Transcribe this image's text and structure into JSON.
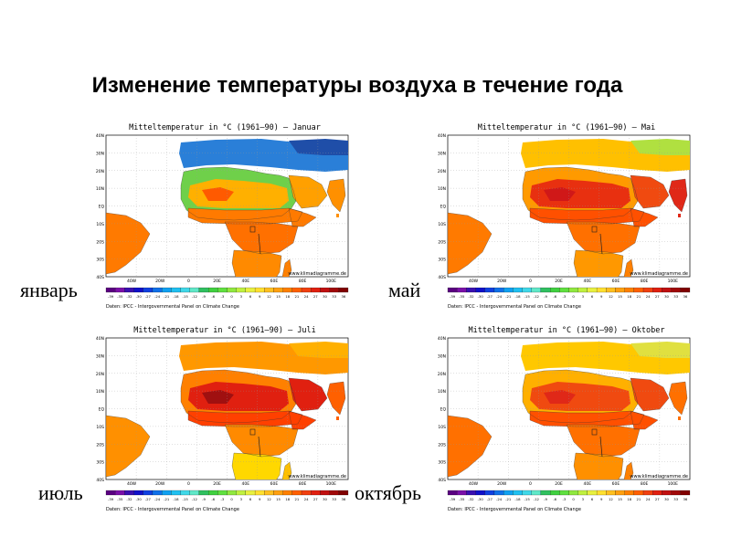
{
  "page": {
    "title": "Изменение температуры воздуха в течение года"
  },
  "panels": [
    {
      "id": "jan",
      "side_label": "январь",
      "map_title": "Mitteltemperatur in °C (1961–90) – Januar",
      "colors": {
        "north": "#6fd04a",
        "sahara": "#ffb000",
        "sahel": "#ff7a00",
        "central": "#ff7000",
        "south": "#ff8a00",
        "arabia": "#ffa000",
        "india": "#ff9000",
        "europe": "#2a7fd8",
        "far_north": "#1f4ea8",
        "hot": "#ff5a00",
        "madagascar": "#ff8000",
        "brazil": "#ff7a00"
      }
    },
    {
      "id": "may",
      "side_label": "май",
      "map_title": "Mitteltemperatur in °C (1961–90) – Mai",
      "colors": {
        "north": "#ff9a00",
        "sahara": "#e83010",
        "sahel": "#ff5000",
        "central": "#ff7000",
        "south": "#ff9800",
        "arabia": "#f04a10",
        "india": "#e02818",
        "europe": "#ffc000",
        "far_north": "#b0e040",
        "hot": "#d01818",
        "madagascar": "#ff8000",
        "brazil": "#ff7a00"
      }
    },
    {
      "id": "jul",
      "side_label": "июль",
      "map_title": "Mitteltemperatur in °C (1961–90) – Juli",
      "colors": {
        "north": "#ff8000",
        "sahara": "#e02010",
        "sahel": "#ff4000",
        "central": "#ff8a00",
        "south": "#ffd800",
        "arabia": "#e02010",
        "india": "#ff6000",
        "europe": "#ff9800",
        "far_north": "#ffb000",
        "hot": "#a01010",
        "madagascar": "#ffc000",
        "brazil": "#ff9000"
      }
    },
    {
      "id": "oct",
      "side_label": "октябрь",
      "map_title": "Mitteltemperatur in °C (1961–90) – Oktober",
      "colors": {
        "north": "#ffb000",
        "sahara": "#f04a10",
        "sahel": "#ff5000",
        "central": "#ff7000",
        "south": "#ff9000",
        "arabia": "#f04a10",
        "india": "#ff7000",
        "europe": "#ffc800",
        "far_north": "#e0e040",
        "hot": "#e02818",
        "madagascar": "#ff8000",
        "brazil": "#ff7000"
      }
    }
  ],
  "map": {
    "y_labels": [
      "40N",
      "30N",
      "20N",
      "10N",
      "EQ",
      "10S",
      "20S",
      "30S",
      "40S"
    ],
    "x_labels": [
      "40W",
      "20W",
      "0",
      "20E",
      "40E",
      "60E",
      "80E",
      "100E"
    ],
    "credit": "www.klimadiagramme.de",
    "source": "Daten: IPCC - Intergovernmental Panel on Climate Change",
    "scale_labels": [
      "-39",
      "-35",
      "-32",
      "-30",
      "-27",
      "-24",
      "-21",
      "-18",
      "-15",
      "-12",
      "-9",
      "-6",
      "-3",
      "0",
      "3",
      "6",
      "9",
      "12",
      "15",
      "18",
      "21",
      "24",
      "27",
      "30",
      "33",
      "36"
    ],
    "scale_colors": [
      "#5a0080",
      "#7a10a8",
      "#3a10b0",
      "#1010c8",
      "#1040e0",
      "#1070e8",
      "#10a0f0",
      "#20c0f0",
      "#40d8e8",
      "#60e8c8",
      "#30c060",
      "#40d040",
      "#60e040",
      "#90e840",
      "#c0f040",
      "#e8f040",
      "#ffe030",
      "#ffc020",
      "#ffa010",
      "#ff8000",
      "#ff6000",
      "#f04010",
      "#e02010",
      "#c01010",
      "#a00808",
      "#800000"
    ]
  }
}
